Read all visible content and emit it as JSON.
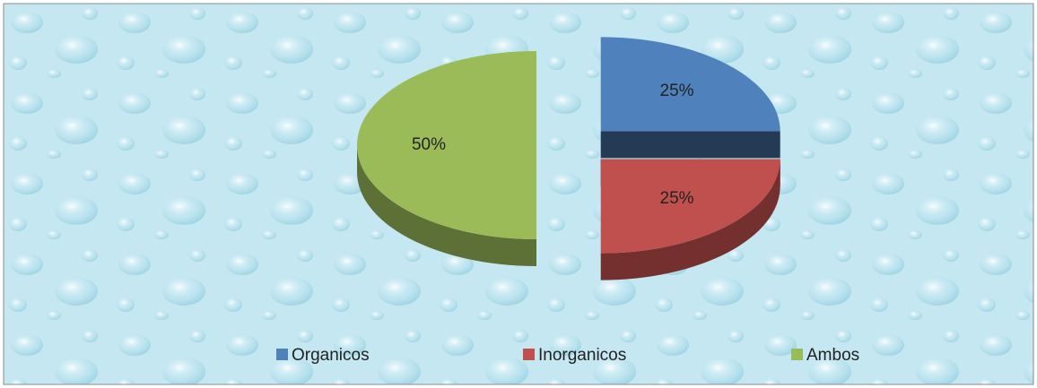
{
  "chart_data": {
    "type": "pie",
    "categories": [
      "Organicos",
      "Inorganicos",
      "Ambos"
    ],
    "values": [
      25,
      25,
      50
    ],
    "value_labels": [
      "25%",
      "25%",
      "50%"
    ],
    "colors": [
      "#4f81bd",
      "#c0504d",
      "#9bbb59"
    ],
    "legend": "bottom"
  }
}
